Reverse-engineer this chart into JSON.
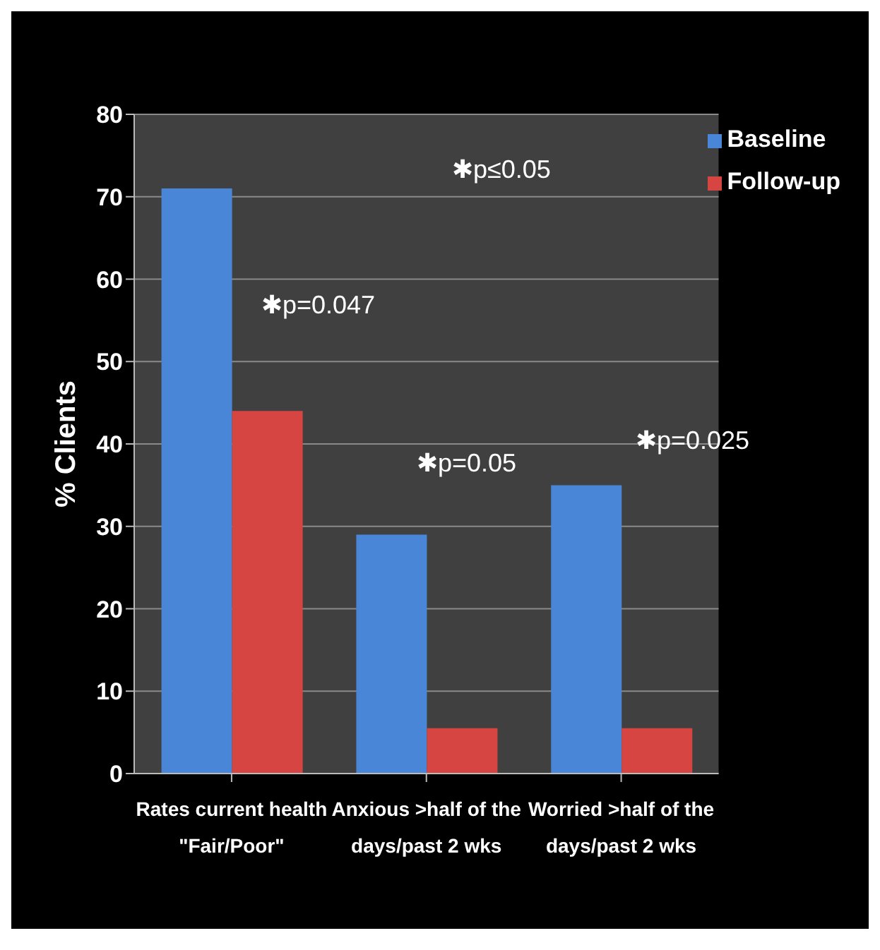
{
  "chart_data": {
    "type": "bar",
    "ylabel": "% Clients",
    "categories": [
      "Rates current health \"Fair/Poor\"",
      "Anxious >half of the days/past 2 wks",
      "Worried >half of the days/past 2 wks"
    ],
    "series": [
      {
        "name": "Baseline",
        "color": "#4a86d8",
        "values": [
          71,
          29,
          35
        ]
      },
      {
        "name": "Follow-up",
        "color": "#d64541",
        "values": [
          44,
          5.5,
          5.5
        ]
      }
    ],
    "ylim": [
      0,
      80
    ],
    "yticks": [
      0,
      10,
      20,
      30,
      40,
      50,
      60,
      70,
      80
    ],
    "grid": "y",
    "legend": "top right",
    "annotations": [
      "✱p=0.047",
      "✱p≤0.05",
      "✱p=0.05",
      "✱p=0.025"
    ]
  }
}
